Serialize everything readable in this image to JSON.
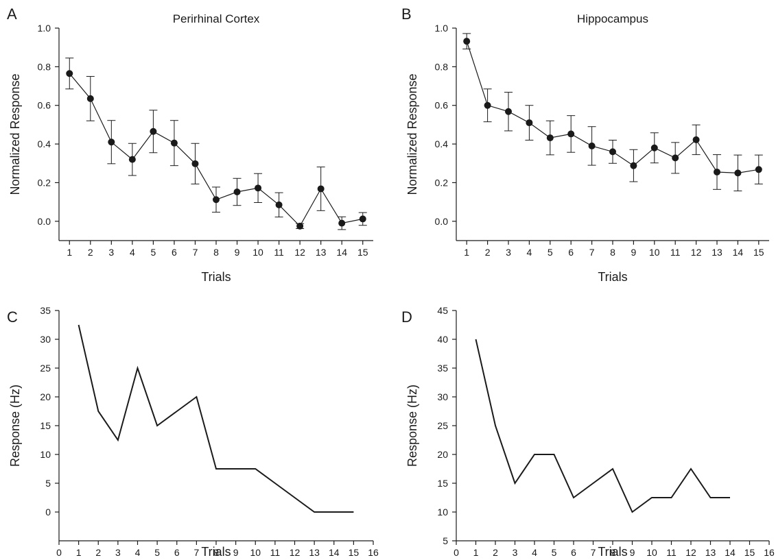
{
  "chart_data": [
    {
      "panel": "A",
      "type": "line",
      "title": "Perirhinal Cortex",
      "xlabel": "Trials",
      "ylabel": "Normalized Response",
      "x": [
        1,
        2,
        3,
        4,
        5,
        6,
        7,
        8,
        9,
        10,
        11,
        12,
        13,
        14,
        15
      ],
      "series": [
        {
          "values": [
            0.765,
            0.635,
            0.41,
            0.32,
            0.465,
            0.405,
            0.298,
            0.112,
            0.152,
            0.172,
            0.085,
            -0.025,
            0.168,
            -0.01,
            0.012
          ],
          "error": [
            0.08,
            0.115,
            0.112,
            0.083,
            0.11,
            0.117,
            0.105,
            0.065,
            0.07,
            0.075,
            0.063,
            0.013,
            0.113,
            0.033,
            0.033
          ],
          "markers": true
        }
      ],
      "xlim": [
        0.5,
        15.5
      ],
      "ylim": [
        -0.1,
        1.0
      ],
      "yticks": [
        0.0,
        0.2,
        0.4,
        0.6,
        0.8,
        1.0
      ],
      "ytick_labels": [
        "0.0",
        "0.2",
        "0.4",
        "0.6",
        "0.8",
        "1.0"
      ],
      "xticks": [
        1,
        2,
        3,
        4,
        5,
        6,
        7,
        8,
        9,
        10,
        11,
        12,
        13,
        14,
        15
      ],
      "grid": false
    },
    {
      "panel": "B",
      "type": "line",
      "title": "Hippocampus",
      "xlabel": "Trials",
      "ylabel": "Normalized Response",
      "x": [
        1,
        2,
        3,
        4,
        5,
        6,
        7,
        8,
        9,
        10,
        11,
        12,
        13,
        14,
        15
      ],
      "series": [
        {
          "values": [
            0.932,
            0.6,
            0.568,
            0.51,
            0.432,
            0.452,
            0.39,
            0.36,
            0.288,
            0.38,
            0.328,
            0.422,
            0.255,
            0.25,
            0.268
          ],
          "error": [
            0.04,
            0.085,
            0.1,
            0.09,
            0.088,
            0.095,
            0.1,
            0.06,
            0.083,
            0.078,
            0.08,
            0.077,
            0.09,
            0.093,
            0.075
          ],
          "markers": true
        }
      ],
      "xlim": [
        0.5,
        15.5
      ],
      "ylim": [
        -0.1,
        1.0
      ],
      "yticks": [
        0.0,
        0.2,
        0.4,
        0.6,
        0.8,
        1.0
      ],
      "ytick_labels": [
        "0.0",
        "0.2",
        "0.4",
        "0.6",
        "0.8",
        "1.0"
      ],
      "xticks": [
        1,
        2,
        3,
        4,
        5,
        6,
        7,
        8,
        9,
        10,
        11,
        12,
        13,
        14,
        15
      ],
      "grid": false
    },
    {
      "panel": "C",
      "type": "line",
      "title": "",
      "xlabel": "Trials",
      "ylabel": "Response (Hz)",
      "x": [
        1,
        2,
        3,
        4,
        5,
        6,
        7,
        8,
        9,
        10,
        11,
        12,
        13,
        14,
        15
      ],
      "series": [
        {
          "values": [
            32.5,
            17.5,
            12.5,
            25,
            15,
            17.5,
            20,
            7.5,
            7.5,
            7.5,
            5,
            2.5,
            0,
            0,
            0
          ],
          "markers": false
        }
      ],
      "xlim": [
        0,
        16
      ],
      "ylim": [
        -5,
        35
      ],
      "yticks": [
        0,
        5,
        10,
        15,
        20,
        25,
        30,
        35
      ],
      "ytick_labels": [
        "0",
        "5",
        "10",
        "15",
        "20",
        "25",
        "30",
        "35"
      ],
      "xticks": [
        0,
        1,
        2,
        3,
        4,
        5,
        6,
        7,
        8,
        9,
        10,
        11,
        12,
        13,
        14,
        15,
        16
      ],
      "grid": false
    },
    {
      "panel": "D",
      "type": "line",
      "title": "",
      "xlabel": "Trials",
      "ylabel": "Response (Hz)",
      "x": [
        1,
        2,
        3,
        4,
        5,
        6,
        7,
        8,
        9,
        10,
        11,
        12,
        13,
        14
      ],
      "series": [
        {
          "values": [
            40,
            25,
            15,
            20,
            20,
            12.5,
            15,
            17.5,
            10,
            12.5,
            12.5,
            17.5,
            12.5,
            12.5
          ],
          "markers": false
        }
      ],
      "xlim": [
        0,
        16
      ],
      "ylim": [
        5,
        45
      ],
      "yticks": [
        5,
        10,
        15,
        20,
        25,
        30,
        35,
        40,
        45
      ],
      "ytick_labels": [
        "5",
        "10",
        "15",
        "20",
        "25",
        "30",
        "35",
        "40",
        "45"
      ],
      "xticks": [
        0,
        1,
        2,
        3,
        4,
        5,
        6,
        7,
        8,
        9,
        10,
        11,
        12,
        13,
        14,
        15,
        16
      ],
      "grid": false
    }
  ]
}
